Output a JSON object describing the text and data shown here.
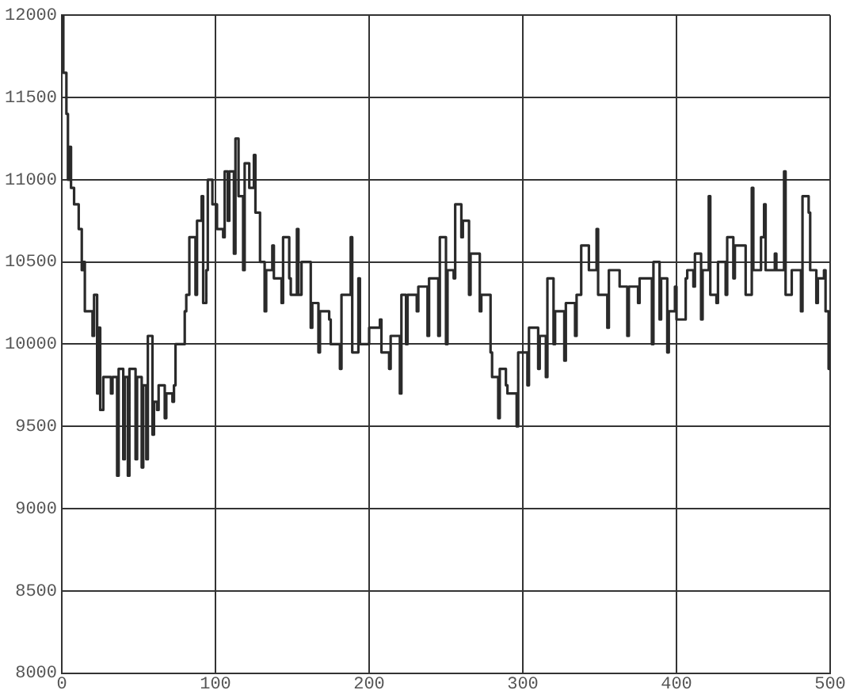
{
  "chart_data": {
    "type": "step",
    "color": "#2a2a2a",
    "xlim": [
      0,
      500
    ],
    "xticks": [
      0,
      100,
      200,
      300,
      400,
      500
    ],
    "ylim": [
      8000,
      12000
    ],
    "yticks": [
      8000,
      8500,
      9000,
      9500,
      10000,
      10500,
      11000,
      11500,
      12000
    ],
    "grid": true,
    "legend": false,
    "marker": "none",
    "line_style": "solid",
    "x": [
      0,
      1,
      3,
      4,
      5,
      6,
      8,
      11,
      13,
      14,
      15,
      18,
      20,
      21,
      23,
      24,
      25,
      27,
      32,
      33,
      36,
      37,
      40,
      41,
      43,
      44,
      48,
      49,
      52,
      53,
      55,
      56,
      59,
      60,
      62,
      63,
      67,
      68,
      72,
      73,
      74,
      79,
      80,
      81,
      83,
      87,
      88,
      91,
      92,
      94,
      95,
      98,
      101,
      105,
      106,
      108,
      109,
      112,
      113,
      115,
      118,
      119,
      122,
      125,
      126,
      129,
      132,
      133,
      137,
      138,
      143,
      144,
      148,
      149,
      153,
      154,
      156,
      162,
      163,
      167,
      168,
      174,
      175,
      181,
      182,
      188,
      189,
      193,
      194,
      200,
      207,
      208,
      213,
      214,
      220,
      221,
      224,
      225,
      231,
      232,
      238,
      239,
      245,
      246,
      250,
      251,
      255,
      256,
      260,
      261,
      265,
      266,
      272,
      273,
      279,
      280,
      284,
      285,
      289,
      290,
      296,
      297,
      303,
      304,
      310,
      311,
      315,
      316,
      320,
      321,
      327,
      328,
      334,
      335,
      338,
      343,
      348,
      349,
      355,
      356,
      362,
      363,
      368,
      369,
      375,
      376,
      384,
      385,
      389,
      390,
      394,
      395,
      399,
      400,
      406,
      407,
      411,
      412,
      416,
      417,
      421,
      422,
      426,
      427,
      432,
      433,
      437,
      438,
      444,
      445,
      449,
      450,
      454,
      455,
      457,
      458,
      464,
      465,
      470,
      471,
      474,
      475,
      481,
      482,
      486,
      487,
      491,
      492,
      496,
      497,
      499,
      500
    ],
    "values": [
      12000,
      11650,
      11400,
      11000,
      11200,
      10950,
      10850,
      10700,
      10450,
      10500,
      10200,
      10200,
      10050,
      10300,
      9700,
      10100,
      9600,
      9800,
      9700,
      9800,
      9200,
      9850,
      9300,
      9800,
      9200,
      9850,
      9300,
      9800,
      9250,
      9750,
      9300,
      10050,
      9450,
      9650,
      9600,
      9750,
      9550,
      9700,
      9650,
      9750,
      10000,
      10000,
      10200,
      10300,
      10650,
      10300,
      10750,
      10900,
      10250,
      10450,
      11000,
      10850,
      10700,
      10650,
      11050,
      10750,
      11050,
      10550,
      11250,
      10900,
      10450,
      11100,
      10950,
      11150,
      10800,
      10500,
      10200,
      10450,
      10600,
      10400,
      10250,
      10650,
      10400,
      10300,
      10700,
      10300,
      10500,
      10100,
      10250,
      9950,
      10200,
      10150,
      10000,
      9850,
      10300,
      10650,
      9950,
      10400,
      10000,
      10100,
      10150,
      9950,
      9850,
      10050,
      9700,
      10300,
      10000,
      10300,
      10200,
      10350,
      10050,
      10400,
      10050,
      10650,
      10000,
      10450,
      10400,
      10850,
      10650,
      10750,
      10300,
      10550,
      10200,
      10300,
      9950,
      9800,
      9550,
      9850,
      9750,
      9700,
      9500,
      9950,
      9750,
      10100,
      9850,
      10050,
      9800,
      10400,
      10000,
      10200,
      9900,
      10250,
      10050,
      10300,
      10600,
      10450,
      10700,
      10300,
      10100,
      10450,
      10450,
      10350,
      10050,
      10350,
      10250,
      10400,
      10000,
      10500,
      10150,
      10400,
      9950,
      10200,
      10350,
      10150,
      10400,
      10450,
      10350,
      10550,
      10150,
      10450,
      10900,
      10300,
      10250,
      10500,
      10300,
      10650,
      10400,
      10600,
      10600,
      10300,
      10950,
      10450,
      10450,
      10650,
      10850,
      10450,
      10550,
      10450,
      11050,
      10300,
      10300,
      10450,
      10200,
      10900,
      10800,
      10450,
      10250,
      10400,
      10450,
      10200,
      9850,
      10000
    ]
  }
}
